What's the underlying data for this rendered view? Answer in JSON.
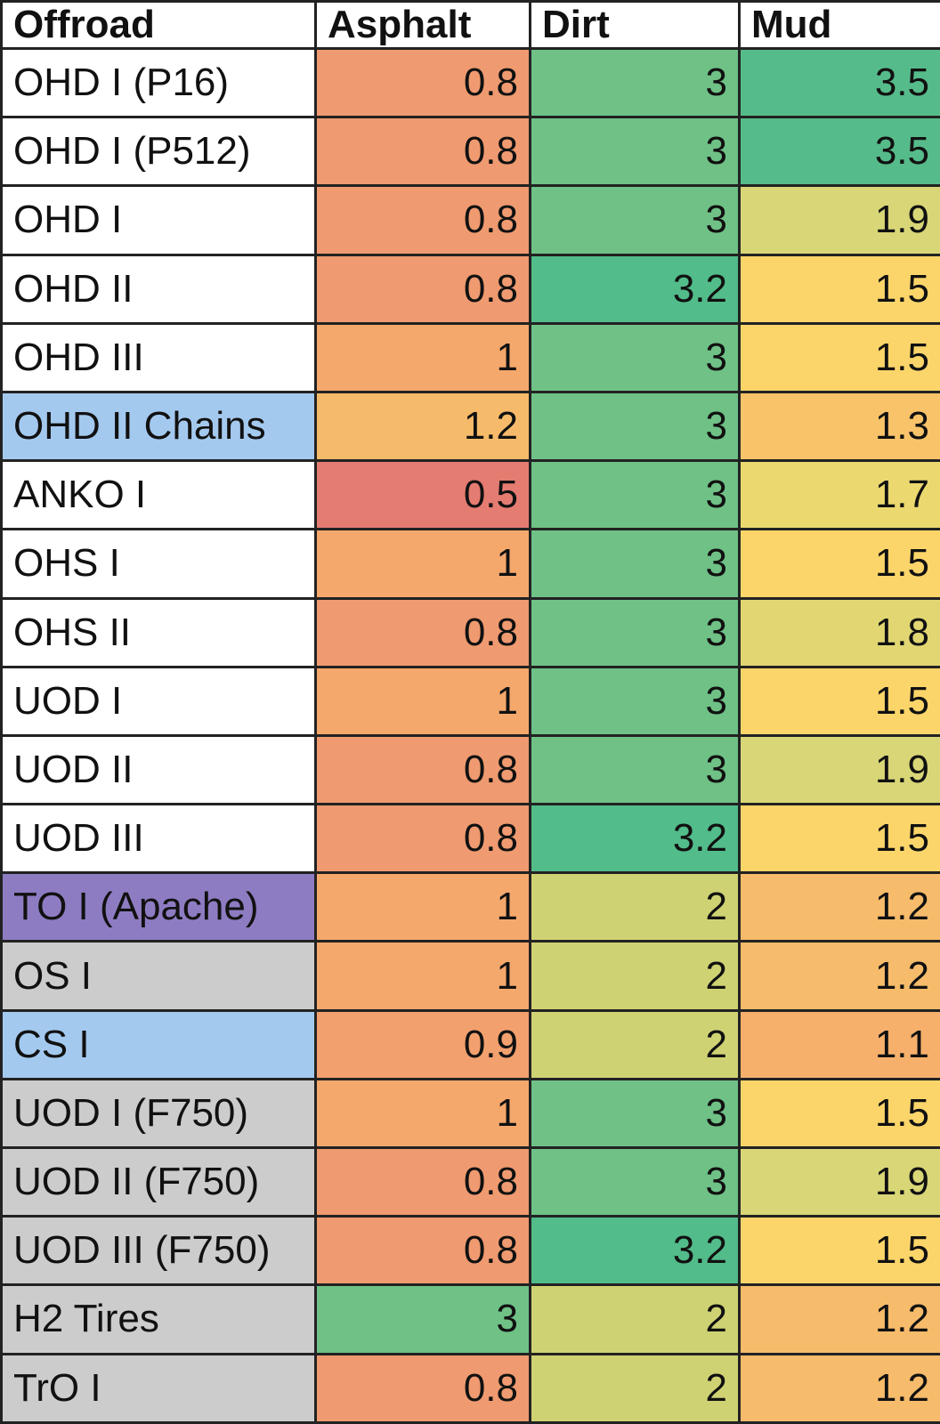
{
  "table": {
    "header": [
      "Offroad",
      "Asphalt",
      "Dirt",
      "Mud"
    ],
    "rows": [
      {
        "label": "OHD I (P16)",
        "label_color": "#ffffff",
        "values": [
          0.8,
          3,
          3.5
        ],
        "colors": [
          "#ef9a70",
          "#6fc186",
          "#56bb8a"
        ]
      },
      {
        "label": "OHD I (P512)",
        "label_color": "#ffffff",
        "values": [
          0.8,
          3,
          3.5
        ],
        "colors": [
          "#ef9a70",
          "#6fc186",
          "#56bb8a"
        ]
      },
      {
        "label": "OHD I",
        "label_color": "#ffffff",
        "values": [
          0.8,
          3,
          1.9
        ],
        "colors": [
          "#ef9a70",
          "#6fc186",
          "#d8d676"
        ]
      },
      {
        "label": "OHD II",
        "label_color": "#ffffff",
        "values": [
          0.8,
          3.2,
          1.5
        ],
        "colors": [
          "#ef9a70",
          "#52bc8a",
          "#fcd56a"
        ]
      },
      {
        "label": "OHD III",
        "label_color": "#ffffff",
        "values": [
          1,
          3,
          1.5
        ],
        "colors": [
          "#f5a86c",
          "#6fc186",
          "#fcd56a"
        ]
      },
      {
        "label": "OHD II Chains",
        "label_color": "#a4c9ef",
        "values": [
          1.2,
          3,
          1.3
        ],
        "colors": [
          "#f6bb6a",
          "#6fc186",
          "#f9c36a"
        ]
      },
      {
        "label": "ANKO I",
        "label_color": "#ffffff",
        "values": [
          0.5,
          3,
          1.7
        ],
        "colors": [
          "#e57c72",
          "#6fc186",
          "#ebd86f"
        ]
      },
      {
        "label": "OHS I",
        "label_color": "#ffffff",
        "values": [
          1,
          3,
          1.5
        ],
        "colors": [
          "#f5a86c",
          "#6fc186",
          "#fcd56a"
        ]
      },
      {
        "label": "OHS II",
        "label_color": "#ffffff",
        "values": [
          0.8,
          3,
          1.8
        ],
        "colors": [
          "#ef9a70",
          "#6fc186",
          "#e1d672"
        ]
      },
      {
        "label": "UOD I",
        "label_color": "#ffffff",
        "values": [
          1,
          3,
          1.5
        ],
        "colors": [
          "#f5a86c",
          "#6fc186",
          "#fcd56a"
        ]
      },
      {
        "label": "UOD II",
        "label_color": "#ffffff",
        "values": [
          0.8,
          3,
          1.9
        ],
        "colors": [
          "#ef9a70",
          "#6fc186",
          "#d8d676"
        ]
      },
      {
        "label": "UOD III",
        "label_color": "#ffffff",
        "values": [
          0.8,
          3.2,
          1.5
        ],
        "colors": [
          "#ef9a70",
          "#52bc8a",
          "#fcd56a"
        ]
      },
      {
        "label": "TO I (Apache)",
        "label_color": "#8e7cc3",
        "values": [
          1,
          2,
          1.2
        ],
        "colors": [
          "#f5a86c",
          "#cfd273",
          "#f6bb6b"
        ]
      },
      {
        "label": "OS I",
        "label_color": "#cccccc",
        "values": [
          1,
          2,
          1.2
        ],
        "colors": [
          "#f5a86c",
          "#cfd273",
          "#f6bb6b"
        ]
      },
      {
        "label": "CS I",
        "label_color": "#a4c9ef",
        "values": [
          0.9,
          2,
          1.1
        ],
        "colors": [
          "#f2a06e",
          "#cfd273",
          "#f6b06b"
        ]
      },
      {
        "label": "UOD I (F750)",
        "label_color": "#cccccc",
        "values": [
          1,
          3,
          1.5
        ],
        "colors": [
          "#f5a86c",
          "#6fc186",
          "#fcd56a"
        ]
      },
      {
        "label": "UOD II (F750)",
        "label_color": "#cccccc",
        "values": [
          0.8,
          3,
          1.9
        ],
        "colors": [
          "#ef9a70",
          "#6fc186",
          "#d8d676"
        ]
      },
      {
        "label": "UOD III (F750)",
        "label_color": "#cccccc",
        "values": [
          0.8,
          3.2,
          1.5
        ],
        "colors": [
          "#ef9a70",
          "#52bc8a",
          "#fcd56a"
        ]
      },
      {
        "label": "H2 Tires",
        "label_color": "#cccccc",
        "values": [
          3,
          2,
          1.2
        ],
        "colors": [
          "#6fc186",
          "#cfd273",
          "#f6bb6b"
        ]
      },
      {
        "label": "TrO I",
        "label_color": "#cccccc",
        "values": [
          0.8,
          2,
          1.2
        ],
        "colors": [
          "#ef9a70",
          "#cfd273",
          "#f6bb6b"
        ]
      }
    ]
  }
}
